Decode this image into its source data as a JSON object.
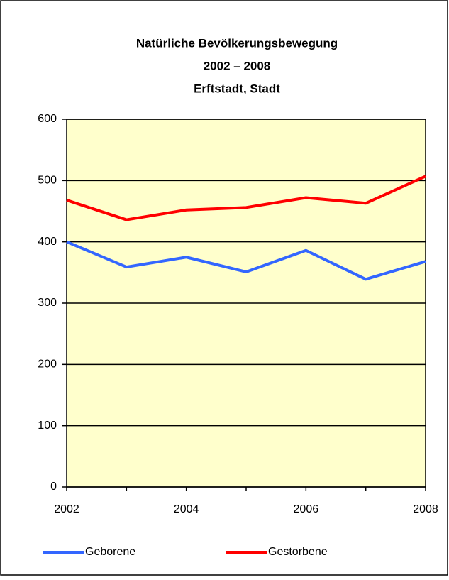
{
  "chart_data": {
    "type": "line",
    "title": "Natürliche Bevölkerungsbewegung",
    "subtitle": [
      "2002 – 2008",
      "Erftstadt, Stadt"
    ],
    "x": [
      2002,
      2003,
      2004,
      2005,
      2006,
      2007,
      2008
    ],
    "xlim": [
      2002,
      2008
    ],
    "xticks": [
      2002,
      2004,
      2006,
      2008
    ],
    "ylim": [
      0,
      600
    ],
    "yticks": [
      0,
      100,
      200,
      300,
      400,
      500,
      600
    ],
    "grid": true,
    "legend": "bottom",
    "series": [
      {
        "name": "Geborene",
        "color": "#3366ff",
        "values": [
          400,
          359,
          375,
          351,
          386,
          339,
          368
        ]
      },
      {
        "name": "Gestorbene",
        "color": "#ff0000",
        "values": [
          468,
          436,
          452,
          456,
          472,
          463,
          507
        ]
      }
    ]
  }
}
